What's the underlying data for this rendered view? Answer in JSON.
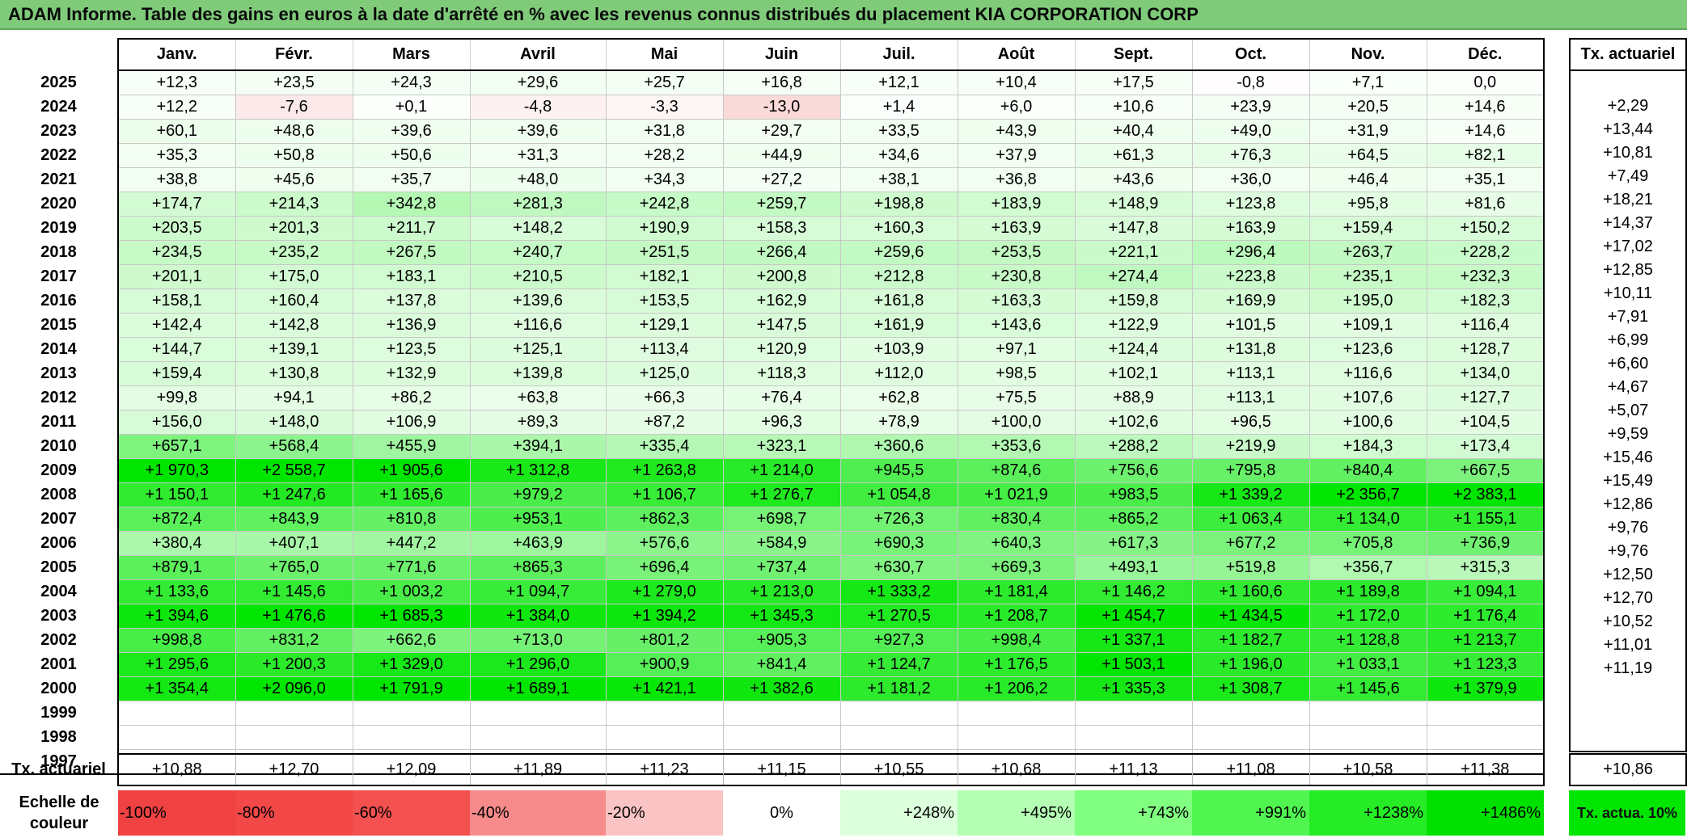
{
  "title": "ADAM Informe. Table des gains en euros à la date d'arrêté en % avec les revenus connus distribués du placement KIA CORPORATION CORP",
  "months": [
    "Janv.",
    "Févr.",
    "Mars",
    "Avril",
    "Mai",
    "Juin",
    "Juil.",
    "Août",
    "Sept.",
    "Oct.",
    "Nov.",
    "Déc."
  ],
  "tx_header": "Tx. actuariel",
  "rows": [
    {
      "year": "2025",
      "values": [
        "+12,3",
        "+23,5",
        "+24,3",
        "+29,6",
        "+25,7",
        "+16,8",
        "+12,1",
        "+10,4",
        "+17,5",
        "-0,8",
        "+7,1",
        "0,0"
      ],
      "tx": ""
    },
    {
      "year": "2024",
      "values": [
        "+12,2",
        "-7,6",
        "+0,1",
        "-4,8",
        "-3,3",
        "-13,0",
        "+1,4",
        "+6,0",
        "+10,6",
        "+23,9",
        "+20,5",
        "+14,6"
      ],
      "tx": "+2,29"
    },
    {
      "year": "2023",
      "values": [
        "+60,1",
        "+48,6",
        "+39,6",
        "+39,6",
        "+31,8",
        "+29,7",
        "+33,5",
        "+43,9",
        "+40,4",
        "+49,0",
        "+31,9",
        "+14,6"
      ],
      "tx": "+13,44"
    },
    {
      "year": "2022",
      "values": [
        "+35,3",
        "+50,8",
        "+50,6",
        "+31,3",
        "+28,2",
        "+44,9",
        "+34,6",
        "+37,9",
        "+61,3",
        "+76,3",
        "+64,5",
        "+82,1"
      ],
      "tx": "+10,81"
    },
    {
      "year": "2021",
      "values": [
        "+38,8",
        "+45,6",
        "+35,7",
        "+48,0",
        "+34,3",
        "+27,2",
        "+38,1",
        "+36,8",
        "+43,6",
        "+36,0",
        "+46,4",
        "+35,1"
      ],
      "tx": "+7,49"
    },
    {
      "year": "2020",
      "values": [
        "+174,7",
        "+214,3",
        "+342,8",
        "+281,3",
        "+242,8",
        "+259,7",
        "+198,8",
        "+183,9",
        "+148,9",
        "+123,8",
        "+95,8",
        "+81,6"
      ],
      "tx": "+18,21"
    },
    {
      "year": "2019",
      "values": [
        "+203,5",
        "+201,3",
        "+211,7",
        "+148,2",
        "+190,9",
        "+158,3",
        "+160,3",
        "+163,9",
        "+147,8",
        "+163,9",
        "+159,4",
        "+150,2"
      ],
      "tx": "+14,37"
    },
    {
      "year": "2018",
      "values": [
        "+234,5",
        "+235,2",
        "+267,5",
        "+240,7",
        "+251,5",
        "+266,4",
        "+259,6",
        "+253,5",
        "+221,1",
        "+296,4",
        "+263,7",
        "+228,2"
      ],
      "tx": "+17,02"
    },
    {
      "year": "2017",
      "values": [
        "+201,1",
        "+175,0",
        "+183,1",
        "+210,5",
        "+182,1",
        "+200,8",
        "+212,8",
        "+230,8",
        "+274,4",
        "+223,8",
        "+235,1",
        "+232,3"
      ],
      "tx": "+12,85"
    },
    {
      "year": "2016",
      "values": [
        "+158,1",
        "+160,4",
        "+137,8",
        "+139,6",
        "+153,5",
        "+162,9",
        "+161,8",
        "+163,3",
        "+159,8",
        "+169,9",
        "+195,0",
        "+182,3"
      ],
      "tx": "+10,11"
    },
    {
      "year": "2015",
      "values": [
        "+142,4",
        "+142,8",
        "+136,9",
        "+116,6",
        "+129,1",
        "+147,5",
        "+161,9",
        "+143,6",
        "+122,9",
        "+101,5",
        "+109,1",
        "+116,4"
      ],
      "tx": "+7,91"
    },
    {
      "year": "2014",
      "values": [
        "+144,7",
        "+139,1",
        "+123,5",
        "+125,1",
        "+113,4",
        "+120,9",
        "+103,9",
        "+97,1",
        "+124,4",
        "+131,8",
        "+123,6",
        "+128,7"
      ],
      "tx": "+6,99"
    },
    {
      "year": "2013",
      "values": [
        "+159,4",
        "+130,8",
        "+132,9",
        "+139,8",
        "+125,0",
        "+118,3",
        "+112,0",
        "+98,5",
        "+102,1",
        "+113,1",
        "+116,6",
        "+134,0"
      ],
      "tx": "+6,60"
    },
    {
      "year": "2012",
      "values": [
        "+99,8",
        "+94,1",
        "+86,2",
        "+63,8",
        "+66,3",
        "+76,4",
        "+62,8",
        "+75,5",
        "+88,9",
        "+113,1",
        "+107,6",
        "+127,7"
      ],
      "tx": "+4,67"
    },
    {
      "year": "2011",
      "values": [
        "+156,0",
        "+148,0",
        "+106,9",
        "+89,3",
        "+87,2",
        "+96,3",
        "+78,9",
        "+100,0",
        "+102,6",
        "+96,5",
        "+100,6",
        "+104,5"
      ],
      "tx": "+5,07"
    },
    {
      "year": "2010",
      "values": [
        "+657,1",
        "+568,4",
        "+455,9",
        "+394,1",
        "+335,4",
        "+323,1",
        "+360,6",
        "+353,6",
        "+288,2",
        "+219,9",
        "+184,3",
        "+173,4"
      ],
      "tx": "+9,59"
    },
    {
      "year": "2009",
      "values": [
        "+1 970,3",
        "+2 558,7",
        "+1 905,6",
        "+1 312,8",
        "+1 263,8",
        "+1 214,0",
        "+945,5",
        "+874,6",
        "+756,6",
        "+795,8",
        "+840,4",
        "+667,5"
      ],
      "tx": "+15,46"
    },
    {
      "year": "2008",
      "values": [
        "+1 150,1",
        "+1 247,6",
        "+1 165,6",
        "+979,2",
        "+1 106,7",
        "+1 276,7",
        "+1 054,8",
        "+1 021,9",
        "+983,5",
        "+1 339,2",
        "+2 356,7",
        "+2 383,1"
      ],
      "tx": "+15,49"
    },
    {
      "year": "2007",
      "values": [
        "+872,4",
        "+843,9",
        "+810,8",
        "+953,1",
        "+862,3",
        "+698,7",
        "+726,3",
        "+830,4",
        "+865,2",
        "+1 063,4",
        "+1 134,0",
        "+1 155,1"
      ],
      "tx": "+12,86"
    },
    {
      "year": "2006",
      "values": [
        "+380,4",
        "+407,1",
        "+447,2",
        "+463,9",
        "+576,6",
        "+584,9",
        "+690,3",
        "+640,3",
        "+617,3",
        "+677,2",
        "+705,8",
        "+736,9"
      ],
      "tx": "+9,76"
    },
    {
      "year": "2005",
      "values": [
        "+879,1",
        "+765,0",
        "+771,6",
        "+865,3",
        "+696,4",
        "+737,4",
        "+630,7",
        "+669,3",
        "+493,1",
        "+519,8",
        "+356,7",
        "+315,3"
      ],
      "tx": "+9,76"
    },
    {
      "year": "2004",
      "values": [
        "+1 133,6",
        "+1 145,6",
        "+1 003,2",
        "+1 094,7",
        "+1 279,0",
        "+1 213,0",
        "+1 333,2",
        "+1 181,4",
        "+1 146,2",
        "+1 160,6",
        "+1 189,8",
        "+1 094,1"
      ],
      "tx": "+12,50"
    },
    {
      "year": "2003",
      "values": [
        "+1 394,6",
        "+1 476,6",
        "+1 685,3",
        "+1 384,0",
        "+1 394,2",
        "+1 345,3",
        "+1 270,5",
        "+1 208,7",
        "+1 454,7",
        "+1 434,5",
        "+1 172,0",
        "+1 176,4"
      ],
      "tx": "+12,70"
    },
    {
      "year": "2002",
      "values": [
        "+998,8",
        "+831,2",
        "+662,6",
        "+713,0",
        "+801,2",
        "+905,3",
        "+927,3",
        "+998,4",
        "+1 337,1",
        "+1 182,7",
        "+1 128,8",
        "+1 213,7"
      ],
      "tx": "+10,52"
    },
    {
      "year": "2001",
      "values": [
        "+1 295,6",
        "+1 200,3",
        "+1 329,0",
        "+1 296,0",
        "+900,9",
        "+841,4",
        "+1 124,7",
        "+1 176,5",
        "+1 503,1",
        "+1 196,0",
        "+1 033,1",
        "+1 123,3"
      ],
      "tx": "+11,01"
    },
    {
      "year": "2000",
      "values": [
        "+1 354,4",
        "+2 096,0",
        "+1 791,9",
        "+1 689,1",
        "+1 421,1",
        "+1 382,6",
        "+1 181,2",
        "+1 206,2",
        "+1 335,3",
        "+1 308,7",
        "+1 145,6",
        "+1 379,9"
      ],
      "tx": "+11,19"
    },
    {
      "year": "1999",
      "values": [
        "",
        "",
        "",
        "",
        "",
        "",
        "",
        "",
        "",
        "",
        "",
        ""
      ],
      "tx": ""
    },
    {
      "year": "1998",
      "values": [
        "",
        "",
        "",
        "",
        "",
        "",
        "",
        "",
        "",
        "",
        "",
        ""
      ],
      "tx": ""
    },
    {
      "year": "1997",
      "values": [
        "",
        "",
        "",
        "",
        "",
        "",
        "",
        "",
        "",
        "",
        "",
        ""
      ],
      "tx": ""
    }
  ],
  "footer": {
    "label": "Tx. actuariel",
    "values": [
      "+10,88",
      "+12,70",
      "+12,09",
      "+11,89",
      "+11,23",
      "+11,15",
      "+10,55",
      "+10,68",
      "+11,13",
      "+11,08",
      "+10,58",
      "+11,38"
    ],
    "total": "+10,86"
  },
  "scale": {
    "label": "Echelle de couleur",
    "items": [
      {
        "label": "-100%",
        "color": "#f04242"
      },
      {
        "label": "-80%",
        "color": "#f24848"
      },
      {
        "label": "-60%",
        "color": "#f35050"
      },
      {
        "label": "-40%",
        "color": "#f78b8b"
      },
      {
        "label": "-20%",
        "color": "#fbc4c4"
      },
      {
        "label": "0%",
        "color": "#ffffff"
      },
      {
        "label": "+248%",
        "color": "#dcffdc"
      },
      {
        "label": "+495%",
        "color": "#b4ffb4"
      },
      {
        "label": "+743%",
        "color": "#80ff80"
      },
      {
        "label": "+991%",
        "color": "#50f550"
      },
      {
        "label": "+1238%",
        "color": "#26ec26"
      },
      {
        "label": "+1486%",
        "color": "#00e100"
      }
    ],
    "tx_label": "Tx. actua. 10%"
  }
}
